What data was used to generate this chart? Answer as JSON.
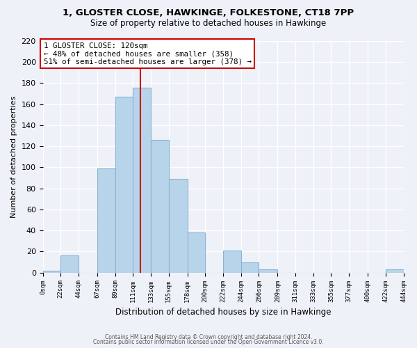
{
  "title1": "1, GLOSTER CLOSE, HAWKINGE, FOLKESTONE, CT18 7PP",
  "title2": "Size of property relative to detached houses in Hawkinge",
  "xlabel": "Distribution of detached houses by size in Hawkinge",
  "ylabel": "Number of detached properties",
  "bin_edges": [
    0,
    22,
    44,
    67,
    89,
    111,
    133,
    155,
    178,
    200,
    222,
    244,
    266,
    289,
    311,
    333,
    355,
    377,
    400,
    422,
    444
  ],
  "bin_counts": [
    2,
    16,
    0,
    99,
    167,
    176,
    126,
    89,
    38,
    0,
    21,
    10,
    3,
    0,
    0,
    0,
    0,
    0,
    0,
    3
  ],
  "bar_color": "#b8d4ea",
  "bar_edge_color": "#8ab4d4",
  "vline_x": 120,
  "vline_color": "#cc0000",
  "annotation_title": "1 GLOSTER CLOSE: 120sqm",
  "annotation_line1": "← 48% of detached houses are smaller (358)",
  "annotation_line2": "51% of semi-detached houses are larger (378) →",
  "annotation_box_color": "#ffffff",
  "annotation_box_edge_color": "#cc0000",
  "xlim": [
    0,
    444
  ],
  "ylim": [
    0,
    220
  ],
  "yticks": [
    0,
    20,
    40,
    60,
    80,
    100,
    120,
    140,
    160,
    180,
    200,
    220
  ],
  "xtick_labels": [
    "0sqm",
    "22sqm",
    "44sqm",
    "67sqm",
    "89sqm",
    "111sqm",
    "133sqm",
    "155sqm",
    "178sqm",
    "200sqm",
    "222sqm",
    "244sqm",
    "266sqm",
    "289sqm",
    "311sqm",
    "333sqm",
    "355sqm",
    "377sqm",
    "400sqm",
    "422sqm",
    "444sqm"
  ],
  "footer1": "Contains HM Land Registry data © Crown copyright and database right 2024.",
  "footer2": "Contains public sector information licensed under the Open Government Licence v3.0.",
  "bg_color": "#eef2f8"
}
